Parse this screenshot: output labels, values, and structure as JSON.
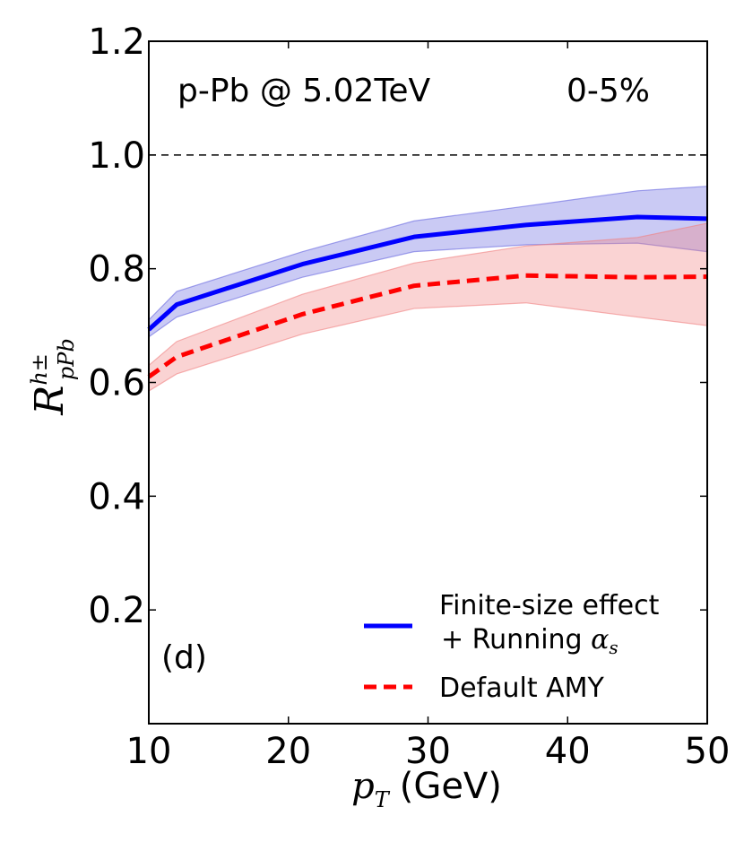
{
  "chart_data": {
    "type": "line",
    "title": "",
    "panel_label": "(d)",
    "annotations": {
      "system": "p-Pb @ 5.02TeV",
      "centrality": "0-5%"
    },
    "xlabel": {
      "var": "p",
      "sub": "T",
      "unit": "(GeV)"
    },
    "ylabel": {
      "var": "R",
      "sup": "h±",
      "sub": "pPb"
    },
    "xlim": [
      10,
      50
    ],
    "ylim": [
      0,
      1.2
    ],
    "xticks": [
      10,
      20,
      30,
      40,
      50
    ],
    "xtick_labels": [
      "10",
      "20",
      "30",
      "40",
      "50"
    ],
    "yticks": [
      0.2,
      0.4,
      0.6,
      0.8,
      1.0,
      1.2
    ],
    "ytick_labels": [
      "0.2",
      "0.4",
      "0.6",
      "0.8",
      "1.0",
      "1.2"
    ],
    "reference_line": {
      "y": 1.0,
      "style": "dashed",
      "color": "#000000"
    },
    "legend_position": "lower-right",
    "series": [
      {
        "name": "Finite-size effect + Running αs",
        "legend_line1": "Finite-size effect",
        "legend_line2_prefix": "+ Running ",
        "legend_line2_symbol": "α",
        "legend_line2_sub": "s",
        "style": "solid",
        "color": "#0000ff",
        "band_color": "#6666e0",
        "x": [
          10,
          12,
          21,
          29,
          37,
          45,
          50
        ],
        "y": [
          0.693,
          0.737,
          0.808,
          0.856,
          0.877,
          0.891,
          0.888
        ],
        "upper": [
          0.71,
          0.76,
          0.83,
          0.884,
          0.91,
          0.937,
          0.945
        ],
        "lower": [
          0.68,
          0.715,
          0.785,
          0.83,
          0.842,
          0.845,
          0.83
        ]
      },
      {
        "name": "Default AMY",
        "legend_line1": "Default AMY",
        "style": "dashed",
        "color": "#ff0000",
        "band_color": "#f08080",
        "x": [
          10,
          12,
          21,
          29,
          37,
          45,
          50
        ],
        "y": [
          0.61,
          0.645,
          0.72,
          0.77,
          0.788,
          0.785,
          0.786
        ],
        "upper": [
          0.63,
          0.672,
          0.755,
          0.81,
          0.84,
          0.855,
          0.88
        ],
        "lower": [
          0.585,
          0.615,
          0.685,
          0.73,
          0.74,
          0.715,
          0.7
        ]
      }
    ]
  }
}
